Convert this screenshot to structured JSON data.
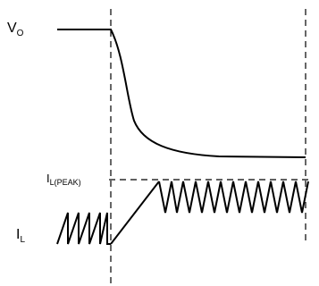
{
  "labels": {
    "vo": {
      "main": "V",
      "sub": "O"
    },
    "il_peak": {
      "main": "I",
      "sub": "L(PEAK)"
    },
    "il": {
      "main": "I",
      "sub": "L"
    }
  },
  "colors": {
    "stroke": "#000000",
    "background": "#ffffff"
  }
}
